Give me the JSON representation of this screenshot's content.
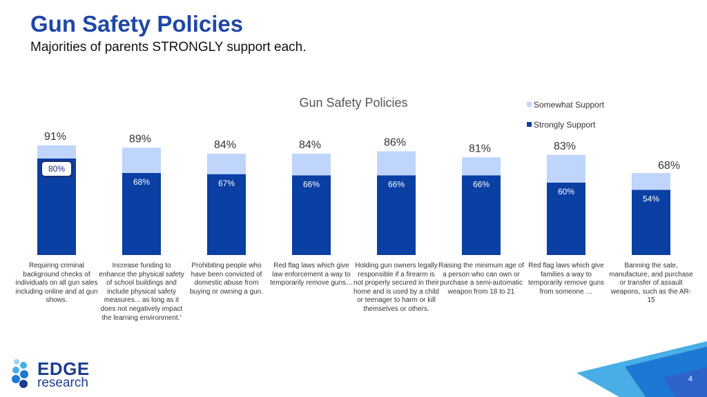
{
  "header": {
    "title": "Gun Safety Policies",
    "subtitle": "Majorities of parents STRONGLY support each."
  },
  "colors": {
    "strong": "#0a3fa3",
    "somewhat": "#c0d5fb",
    "highlight_border": "#1e2f6e"
  },
  "chart_data": {
    "type": "bar",
    "stacked": true,
    "title": "Gun Safety Policies",
    "legend_position": "top-right",
    "categories": [
      "Requiring criminal background checks of individuals on all gun sales including online and at gun shows.",
      "Increase funding to enhance the physical safety of school buildings and include physical safety measures... as long as it does not negatively impact the learning environment.'",
      "Prohibiting people who have been convicted of domestic abuse from buying or owning a gun.",
      "Red flag laws which give law enforcement a way to temporarily remove guns…",
      "Holding gun owners legally responsible if a firearm is not properly secured in their home and is used by a child or teenager to harm or kill themselves or others.",
      "Raising the minimum age of a person who can own or purchase a semi-automatic weapon from 18 to 21",
      "Red flag laws which give families a way to temporarily remove guns from someone …",
      "Banning the sale, manufacture, and purchase or transfer of assault weapons, such as the AR-15"
    ],
    "series": [
      {
        "name": "Strongly Support",
        "values": [
          80,
          68,
          67,
          66,
          66,
          66,
          60,
          54
        ],
        "labels": [
          "80%",
          "68%",
          "67%",
          "66%",
          "66%",
          "66%",
          "60%",
          "54%"
        ]
      },
      {
        "name": "Somewhat Support",
        "values": [
          11,
          21,
          17,
          18,
          20,
          15,
          23,
          14
        ]
      }
    ],
    "totals": [
      91,
      89,
      84,
      84,
      86,
      81,
      83,
      68
    ],
    "total_labels": [
      "91%",
      "89%",
      "84%",
      "84%",
      "86%",
      "81%",
      "83%",
      "68%"
    ],
    "highlighted_index": 0,
    "legend": [
      "Somewhat Support",
      "Strongly Support"
    ],
    "ylim": [
      0,
      100
    ],
    "grid": false
  },
  "logo": {
    "brand": "EDGE",
    "sub": "research"
  },
  "page": {
    "number": "4"
  }
}
